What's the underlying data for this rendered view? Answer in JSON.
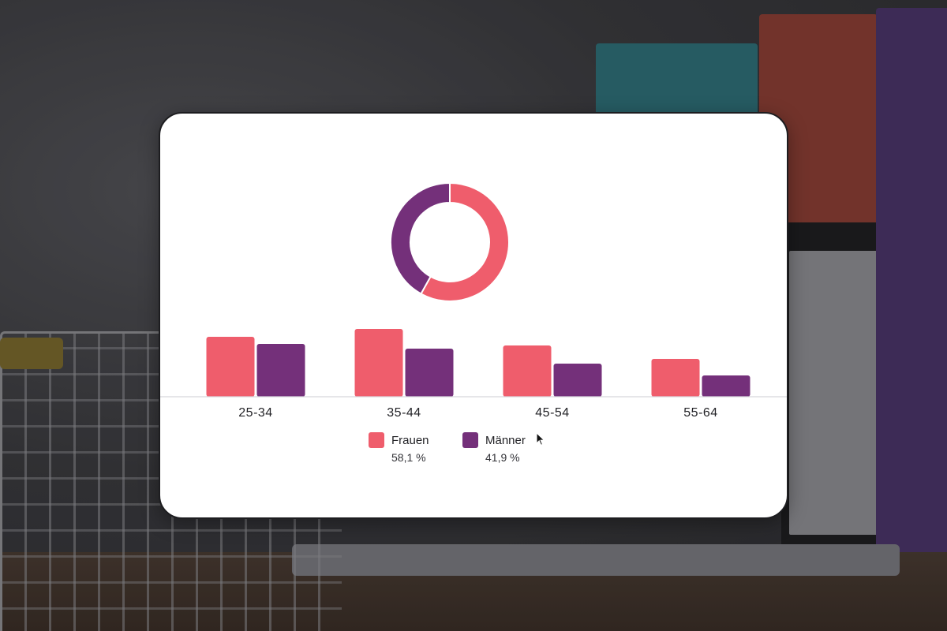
{
  "chart_data": [
    {
      "type": "pie",
      "hole": true,
      "slices": [
        {
          "name": "Frauen",
          "value": 58.1,
          "color": "#ef5d6c"
        },
        {
          "name": "Männer",
          "value": 41.9,
          "color": "#74307a"
        }
      ]
    },
    {
      "type": "bar",
      "categories": [
        "25-34",
        "35-44",
        "45-54",
        "55-64"
      ],
      "series": [
        {
          "name": "Frauen",
          "values": [
            76,
            86,
            65,
            48
          ],
          "color": "#ef5d6c"
        },
        {
          "name": "Männer",
          "values": [
            67,
            61,
            42,
            27
          ],
          "color": "#74307a"
        }
      ],
      "ylim": [
        0,
        100
      ],
      "grid": false,
      "legend": "bottom"
    }
  ],
  "legend": {
    "items": [
      {
        "label": "Frauen",
        "value": "58,1 %",
        "color": "#ef5d6c"
      },
      {
        "label": "Männer",
        "value": "41,9 %",
        "color": "#74307a"
      }
    ]
  },
  "icons": {
    "cursor": "mouse-pointer-icon"
  }
}
